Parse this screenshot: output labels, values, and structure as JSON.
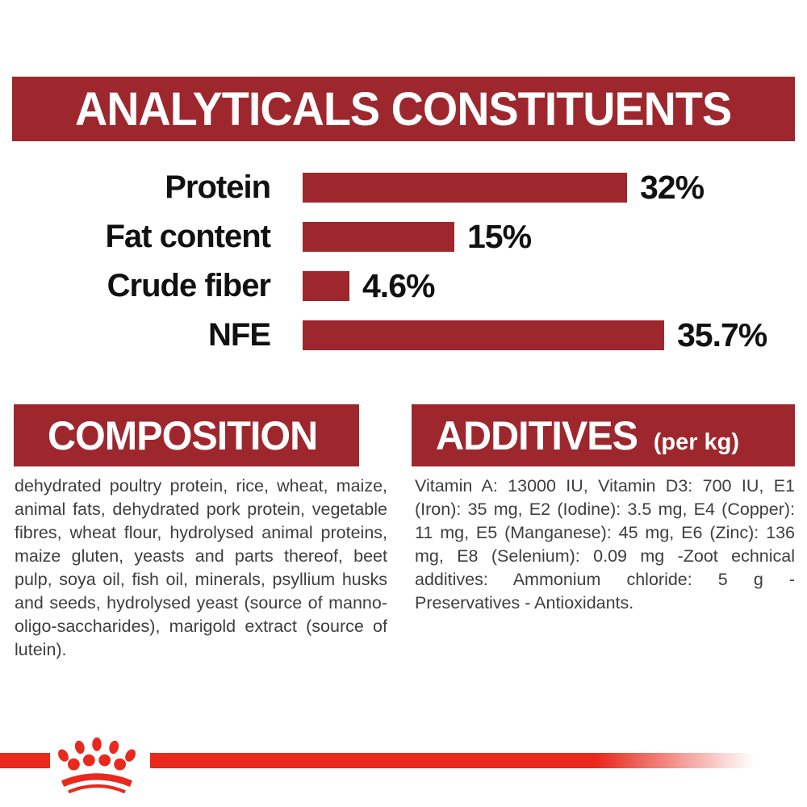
{
  "colors": {
    "dark_red": "#9e272d",
    "bright_red": "#e8291c",
    "body_text": "#3e3e3e",
    "label_black": "#111111",
    "banner_text": "#ffffff"
  },
  "analyticals": {
    "title": "ANALYTICALS CONSTITUENTS"
  },
  "chart_data": {
    "type": "bar",
    "orientation": "horizontal",
    "title": "ANALYTICALS CONSTITUENTS",
    "categories": [
      "Protein",
      "Fat content",
      "Crude fiber",
      "NFE"
    ],
    "values": [
      32,
      15,
      4.6,
      35.7
    ],
    "value_labels": [
      "32%",
      "15%",
      "4.6%",
      "35.7%"
    ],
    "unit": "%",
    "bar_color": "#9e272d",
    "xlim": [
      0,
      48
    ],
    "grid": false,
    "legend": false
  },
  "composition": {
    "title": "COMPOSITION",
    "body": "dehydrated poultry protein, rice, wheat, maize, animal fats, dehydrated pork protein, vegetable fibres, wheat flour, hydrolysed animal proteins, maize gluten, yeasts and parts thereof, beet pulp, soya oil, fish oil, minerals, psyllium husks and seeds, hydrolysed yeast (source of manno-oligo-saccharides), marigold extract (source of lutein)."
  },
  "additives": {
    "title": "ADDITIVES",
    "unit": "(per kg)",
    "body": "Vitamin A: 13000 IU, Vitamin D3: 700 IU, E1 (Iron): 35 mg, E2 (Iodine): 3.5 mg, E4 (Copper): 11 mg, E5 (Manganese): 45 mg, E6 (Zinc): 136 mg, E8 (Selenium): 0.09 mg -Zoot echnical additives: Ammonium chloride: 5 g - Preservatives - Antioxidants."
  },
  "footer": {
    "logo": "royal-canin-crown-paw-logo"
  }
}
